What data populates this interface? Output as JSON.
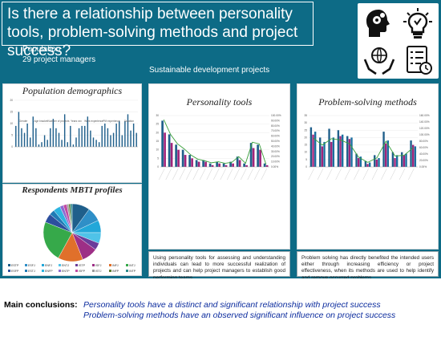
{
  "header": {
    "title": "Is there a relationship between personality tools, problem-solving methods and project success?",
    "population_label": "Population",
    "population_value": "29 project managers",
    "context": "Sustainable development projects"
  },
  "icons": [
    "head-gears-icon",
    "lightbulb-icon",
    "hands-globe-icon",
    "checklist-icon"
  ],
  "panels": {
    "demographics": {
      "title": "Population demographics"
    },
    "personality": {
      "title": "Personality tools"
    },
    "problem": {
      "title": "Problem-solving methods"
    },
    "mbti": {
      "title": "Respondents MBTI profiles"
    }
  },
  "texts": {
    "personality_text": "Using personality tools for assessing and understanding individuals can lead to more successful realization of projects and can help project managers to establish good performing teams.",
    "problem_text": "Problem solving has directly benefited the intended users either through increasing efficiency or project effectiveness, when its methods are used to help identify and remove occurred problems."
  },
  "conclusions": {
    "label": "Main conclusions:",
    "line1": "Personality tools have a distinct and significant relationship with project success",
    "line2": "Problem-solving methods have an observed significant influence on project success"
  },
  "colors": {
    "background": "#0d6b86",
    "bar_blue": "#1f5f8b",
    "bar_magenta": "#a0247a",
    "line_green": "#3aa03a",
    "conclusion_text": "#0d2d9e"
  },
  "chart_data": [
    {
      "type": "bar",
      "title": "Population demographics",
      "group_labels": [
        "Gender",
        "Age bracket",
        "Number of projects",
        "Years xxx",
        "Work experience",
        "PM experience",
        "Duration"
      ],
      "values": [
        9,
        15,
        8,
        6,
        10,
        4,
        13,
        8,
        1,
        2,
        5,
        3,
        8,
        12,
        8,
        6,
        3,
        14,
        2,
        9,
        1,
        4,
        8,
        9,
        9,
        13,
        7,
        4,
        3,
        2,
        9,
        10,
        8,
        5,
        6,
        10,
        11,
        5,
        11,
        14,
        7,
        10,
        6
      ],
      "ylim": [
        0,
        20
      ],
      "yticks": [
        0,
        5,
        10,
        15,
        20
      ]
    },
    {
      "type": "bar",
      "title": "Personality tools",
      "series": [
        {
          "values": [
            27,
            19,
            13,
            10,
            7,
            4,
            4,
            2,
            3,
            2,
            3,
            6,
            2,
            14,
            13,
            2
          ]
        },
        {
          "values": [
            20,
            14,
            10,
            7,
            5,
            3,
            3,
            1,
            2,
            1,
            2,
            4,
            1,
            11,
            10,
            1
          ]
        }
      ],
      "line": [
        92,
        63,
        45,
        35,
        23,
        15,
        12,
        8,
        10,
        7,
        9,
        20,
        7,
        48,
        45,
        5
      ],
      "ylim": [
        0,
        30
      ],
      "yticks": [
        0,
        5,
        10,
        15,
        20,
        25,
        30
      ],
      "y2ticks": [
        "0.00%",
        "10.00%",
        "20.00%",
        "30.00%",
        "40.00%",
        "50.00%",
        "60.00%",
        "70.00%",
        "80.00%",
        "90.00%",
        "100.00%"
      ]
    },
    {
      "type": "bar",
      "title": "Problem-solving methods",
      "series": [
        {
          "values": [
            27,
            20,
            26,
            25,
            21,
            9,
            4,
            8,
            24,
            10,
            10,
            18
          ]
        },
        {
          "values": [
            22,
            14,
            17,
            21,
            19,
            6,
            2,
            5,
            16,
            6,
            8,
            15
          ]
        },
        {
          "values": [
            24,
            17,
            20,
            22,
            20,
            7,
            3,
            6,
            18,
            8,
            9,
            14
          ]
        }
      ],
      "line": [
        90,
        68,
        88,
        84,
        72,
        30,
        14,
        28,
        80,
        34,
        36,
        60
      ],
      "ylim": [
        0,
        35
      ],
      "yticks": [
        0,
        5,
        10,
        15,
        20,
        25,
        30,
        35
      ],
      "y2ticks": [
        "0.00%",
        "20.00%",
        "40.00%",
        "60.00%",
        "80.00%",
        "100.00%",
        "120.00%",
        "140.00%",
        "160.00%"
      ]
    },
    {
      "type": "pie",
      "title": "Respondents MBTI profiles",
      "labels": [
        "ESTP",
        "ESFJ",
        "ENFJ",
        "ENTJ",
        "ISTP",
        "ISFJ",
        "INFJ",
        "INTJ",
        "ESFP",
        "ESTJ",
        "ENFP",
        "ENTP",
        "ISFP",
        "ISTJ",
        "INFP",
        "INTP"
      ],
      "values": [
        10,
        8,
        7,
        6,
        4,
        9,
        14,
        23,
        5,
        3,
        4,
        2,
        2,
        1,
        1,
        1
      ],
      "colors": [
        "#1f5f8b",
        "#2f8fc7",
        "#22a7d9",
        "#4fc3e8",
        "#6a3d9a",
        "#9d2f86",
        "#e0702b",
        "#36a94a",
        "#2c4f9e",
        "#1f7ab5",
        "#2db4e0",
        "#8b6bd1",
        "#c14aa2",
        "#9a9a9a",
        "#5c7c2f",
        "#2e8b8b"
      ]
    }
  ]
}
